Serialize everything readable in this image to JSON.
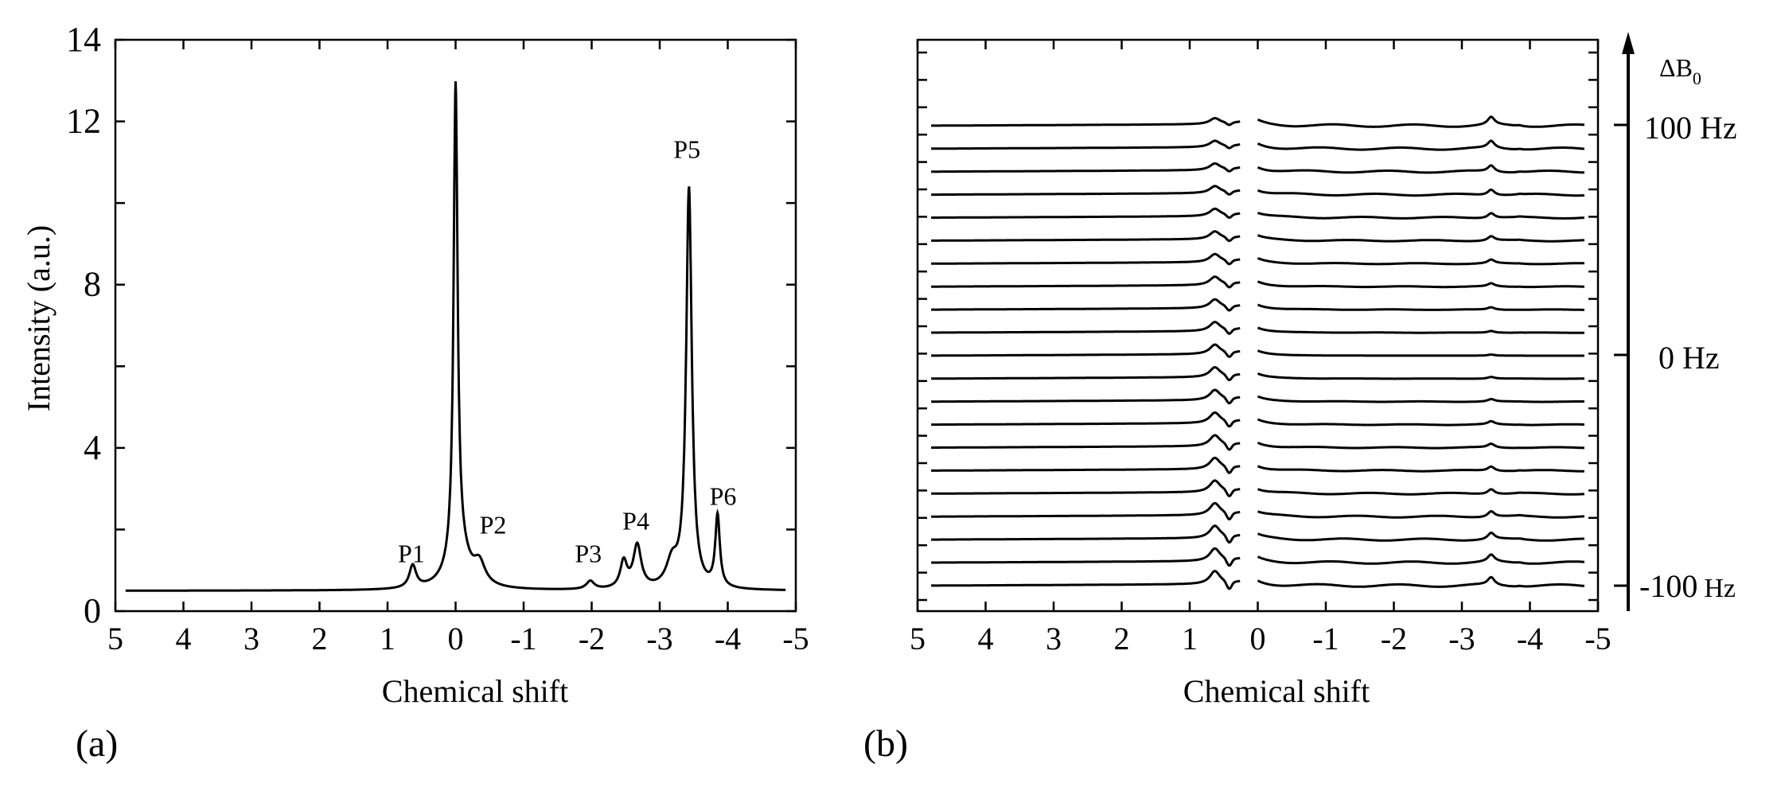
{
  "chart_data": [
    {
      "panel_label": "(a)",
      "type": "line",
      "xlabel": "Chemical shift",
      "ylabel": "Intensity (a.u.)",
      "xlim": [
        5,
        -5
      ],
      "ylim": [
        0,
        14
      ],
      "xticks": [
        5,
        4,
        3,
        2,
        1,
        0,
        -1,
        -2,
        -3,
        -4,
        -5
      ],
      "xtick_labels": [
        "5",
        "4",
        "3",
        "2",
        "1",
        "0",
        "-1",
        "-2",
        "-3",
        "-4",
        "-5"
      ],
      "yticks": [
        0,
        4,
        8,
        12,
        14
      ],
      "ytick_labels": [
        "0",
        "4",
        "8",
        "12",
        "14"
      ],
      "baseline": 0.5,
      "series": [
        {
          "peaks": [
            {
              "label": "P1",
              "center": 0.63,
              "height": 0.55,
              "width": 0.06
            },
            {
              "label": "",
              "center": 0.0,
              "height": 11.6,
              "width": 0.035
            },
            {
              "label": "",
              "center": -0.05,
              "height": 0.9,
              "width": 0.18
            },
            {
              "label": "P2",
              "center": -0.35,
              "height": 0.5,
              "width": 0.1
            },
            {
              "label": "P3",
              "center": -1.98,
              "height": 0.2,
              "width": 0.07
            },
            {
              "label": "",
              "center": -2.47,
              "height": 0.65,
              "width": 0.06
            },
            {
              "label": "P4",
              "center": -2.67,
              "height": 1.05,
              "width": 0.07
            },
            {
              "label": "",
              "center": -3.18,
              "height": 0.6,
              "width": 0.1
            },
            {
              "label": "P5",
              "center": -3.43,
              "height": 9.8,
              "width": 0.05
            },
            {
              "label": "P6",
              "center": -3.85,
              "height": 1.75,
              "width": 0.04
            }
          ]
        }
      ],
      "annotations": [
        {
          "text": "P1",
          "x": 0.65,
          "y": 1.2
        },
        {
          "text": "P2",
          "x": -0.55,
          "y": 1.9
        },
        {
          "text": "P3",
          "x": -1.95,
          "y": 1.2
        },
        {
          "text": "P4",
          "x": -2.65,
          "y": 2.0
        },
        {
          "text": "P5",
          "x": -3.4,
          "y": 11.1
        },
        {
          "text": "P6",
          "x": -3.93,
          "y": 2.6
        }
      ]
    },
    {
      "panel_label": "(b)",
      "type": "line",
      "xlabel": "Chemical shift",
      "xlim": [
        5,
        -5
      ],
      "xticks": [
        5,
        4,
        3,
        2,
        1,
        0,
        -1,
        -2,
        -3,
        -4,
        -5
      ],
      "xtick_labels": [
        "5",
        "4",
        "3",
        "2",
        "1",
        "0",
        "-1",
        "-2",
        "-3",
        "-4",
        "-5"
      ],
      "trace_count": 21,
      "stacked_by": "ΔB0",
      "delta_b0_range_hz": [
        -100,
        100
      ],
      "water_region_removed": [
        -0.05,
        0.2
      ],
      "right_axis": {
        "title_main": "ΔB",
        "title_sub": "0",
        "tick_labels": [
          "100 Hz",
          "0 Hz",
          "-100",
          "Hz"
        ]
      }
    }
  ]
}
